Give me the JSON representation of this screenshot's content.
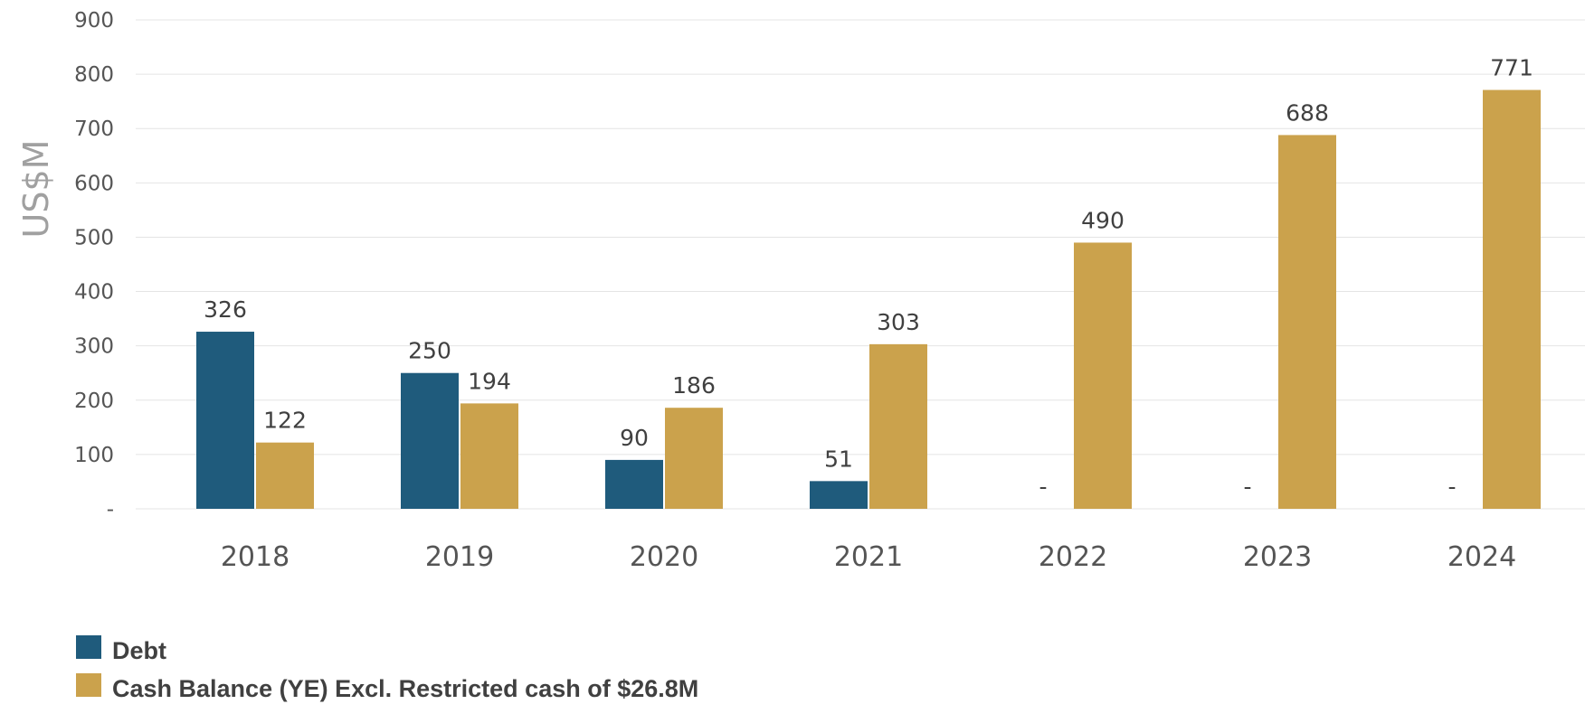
{
  "chart_data": {
    "type": "bar",
    "ylabel": "US$M",
    "xlabel": "",
    "title": "",
    "ylim": [
      0,
      900
    ],
    "y_ticks": [
      0,
      100,
      200,
      300,
      400,
      500,
      600,
      700,
      800,
      900
    ],
    "y_tick_labels": [
      "-",
      "100",
      "200",
      "300",
      "400",
      "500",
      "600",
      "700",
      "800",
      "900"
    ],
    "categories": [
      "2018",
      "2019",
      "2020",
      "2021",
      "2022",
      "2023",
      "2024"
    ],
    "series": [
      {
        "name": "Debt",
        "color": "#1f5b7c",
        "values": [
          326,
          250,
          90,
          51,
          0,
          0,
          0
        ],
        "data_labels": [
          "326",
          "250",
          "90",
          "51",
          "-",
          "-",
          "-"
        ]
      },
      {
        "name": "Cash Balance (YE) Excl. Restricted cash of $26.8M",
        "color": "#cba24c",
        "values": [
          122,
          194,
          186,
          303,
          490,
          688,
          771
        ],
        "data_labels": [
          "122",
          "194",
          "186",
          "303",
          "490",
          "688",
          "771"
        ]
      }
    ],
    "grid": true,
    "legend_position": "bottom-left"
  }
}
